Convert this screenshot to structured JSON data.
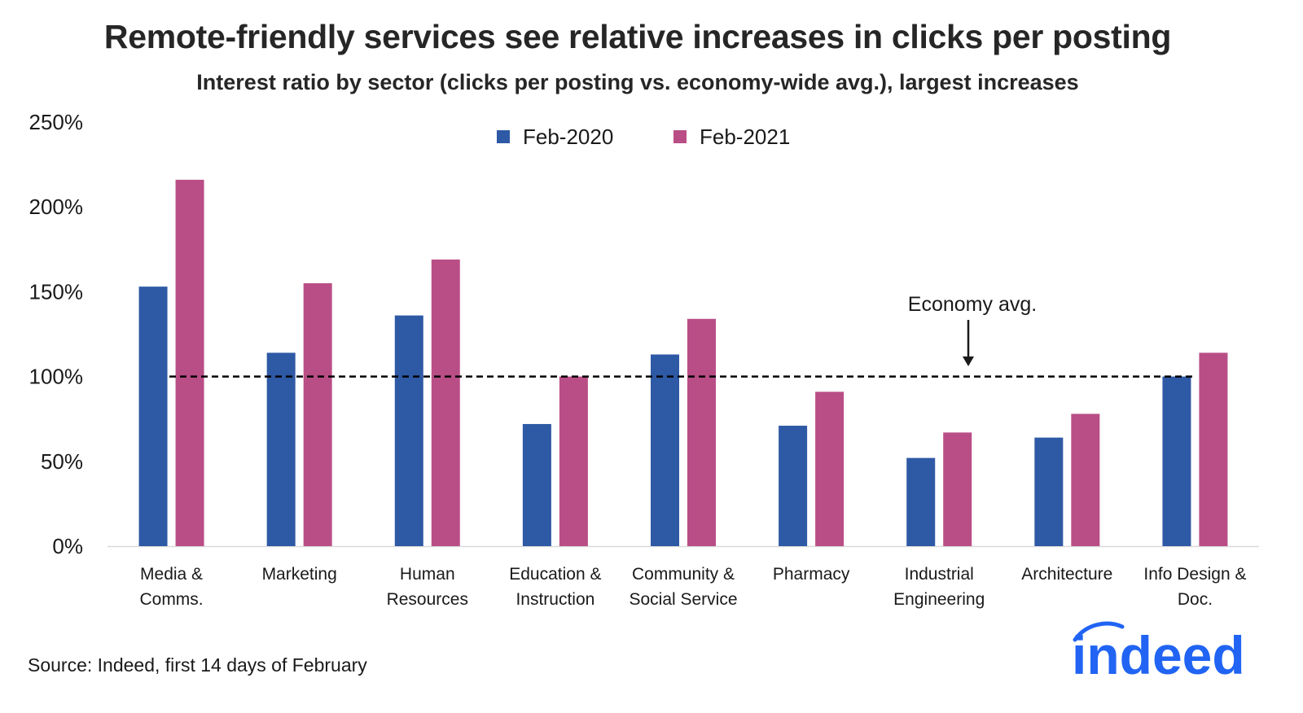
{
  "title": "Remote-friendly services see relative increases in clicks per posting",
  "subtitle": "Interest ratio by sector (clicks per posting vs. economy-wide avg.), largest increases",
  "source": "Source: Indeed, first 14 days of February",
  "logo": {
    "text": "indeed",
    "color": "#2164f3"
  },
  "colors": {
    "feb2020": "#2e59a5",
    "feb2021": "#b94e86",
    "axis": "#d9d9d9",
    "reference": "#000000"
  },
  "chart_data": {
    "type": "bar",
    "title": "Remote-friendly services see relative increases in clicks per posting",
    "subtitle": "Interest ratio by sector (clicks per posting vs. economy-wide avg.), largest increases",
    "xlabel": "",
    "ylabel": "",
    "ylim": [
      0,
      250
    ],
    "y_ticks": [
      0,
      50,
      100,
      150,
      200,
      250
    ],
    "y_tick_labels": [
      "0%",
      "50%",
      "100%",
      "150%",
      "200%",
      "250%"
    ],
    "grid": false,
    "legend_position": "top-center",
    "categories": [
      [
        "Media &",
        "Comms."
      ],
      [
        "Marketing"
      ],
      [
        "Human",
        "Resources"
      ],
      [
        "Education &",
        "Instruction"
      ],
      [
        "Community &",
        "Social Service"
      ],
      [
        "Pharmacy"
      ],
      [
        "Industrial",
        "Engineering"
      ],
      [
        "Architecture"
      ],
      [
        "Info Design &",
        "Doc."
      ]
    ],
    "series": [
      {
        "name": "Feb-2020",
        "color": "#2e59a5",
        "values": [
          153,
          114,
          136,
          72,
          113,
          71,
          52,
          64,
          100
        ]
      },
      {
        "name": "Feb-2021",
        "color": "#b94e86",
        "values": [
          216,
          155,
          169,
          100,
          134,
          91,
          67,
          78,
          114
        ]
      }
    ],
    "reference_line": {
      "value": 100,
      "style": "dashed",
      "label": "Economy avg."
    },
    "annotations": [
      {
        "text": "Economy avg.",
        "arrow": "down",
        "points_to": 100
      }
    ]
  }
}
